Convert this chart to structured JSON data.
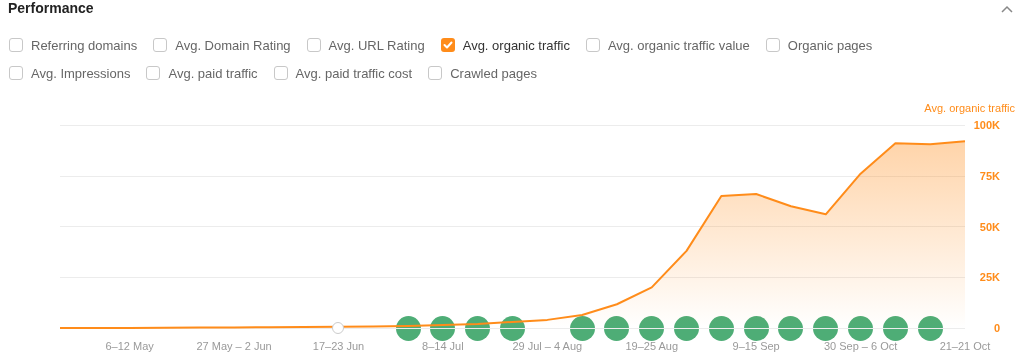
{
  "chart_data": {
    "type": "area",
    "title": "Performance",
    "ylabel": "Avg. organic traffic",
    "annotations": [
      "Referring domains",
      "Avg. Domain Rating",
      "Avg. URL Rating",
      "Avg. organic traffic value",
      "Organic pages",
      "Avg. Impressions",
      "Avg. paid traffic",
      "Avg. paid traffic cost",
      "Crawled pages"
    ],
    "categories": [
      null,
      null,
      "6–12 May",
      null,
      null,
      "27 May – 2 Jun",
      null,
      null,
      "17–23 Jun",
      null,
      null,
      "8–14 Jul",
      null,
      null,
      "29 Jul – 4 Aug",
      null,
      null,
      "19–25 Aug",
      null,
      null,
      "9–15 Sep",
      null,
      null,
      "30 Sep – 6 Oct",
      null,
      null,
      "21–21 Oct"
    ],
    "series": [
      {
        "name": "Avg. organic traffic",
        "color": "#ff8c1a",
        "values": [
          0,
          0,
          0,
          100,
          200,
          300,
          400,
          500,
          600,
          800,
          1000,
          1500,
          2000,
          3000,
          4000,
          6400,
          11700,
          20000,
          38000,
          65000,
          66000,
          60000,
          56000,
          76000,
          91000,
          90500,
          92000
        ]
      }
    ],
    "ylim": [
      0,
      100000
    ],
    "yticks": [
      {
        "value": 0,
        "label": "0"
      },
      {
        "value": 25000,
        "label": "25K"
      },
      {
        "value": 50000,
        "label": "50K"
      },
      {
        "value": 75000,
        "label": "75K"
      },
      {
        "value": 100000,
        "label": "100K"
      }
    ],
    "grid": "y",
    "legend": "top left",
    "marker": "none",
    "line_style": "solid"
  }
}
